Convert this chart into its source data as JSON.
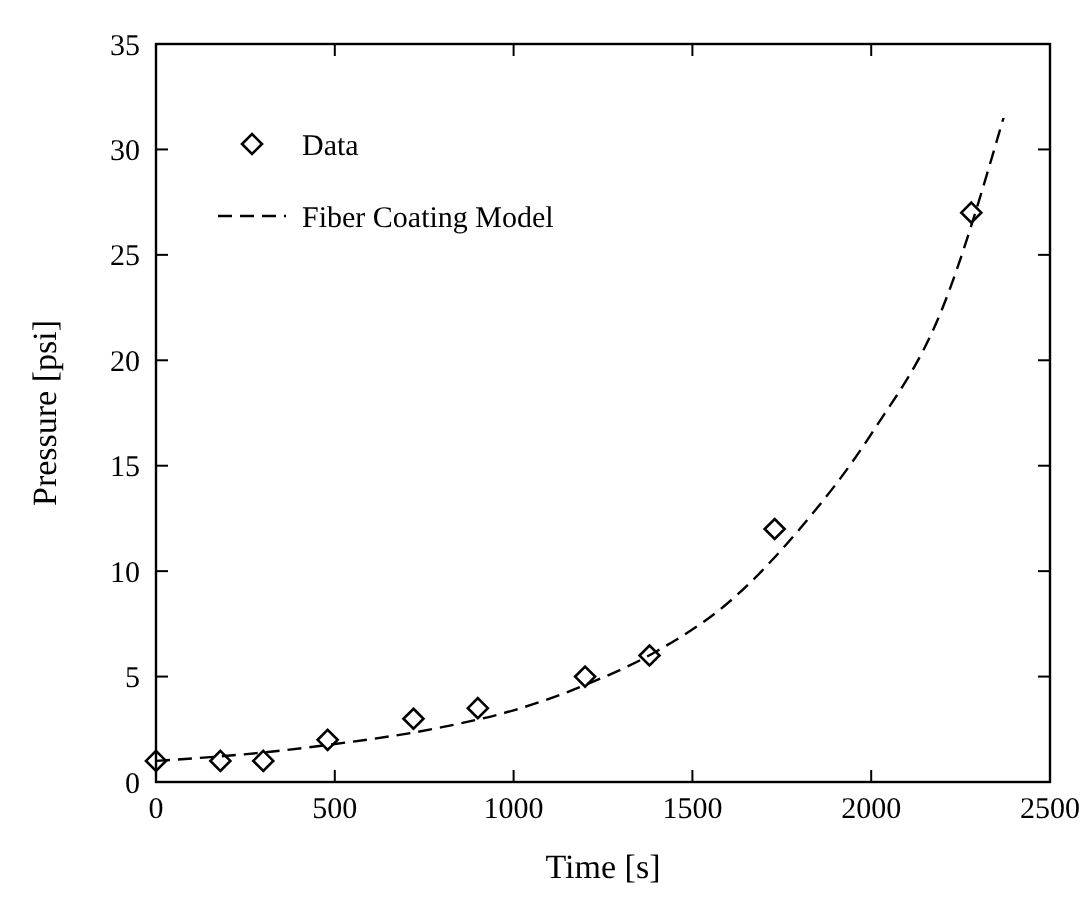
{
  "chart_data": {
    "type": "scatter",
    "xlabel": "Time [s]",
    "ylabel": "Pressure [psi]",
    "xlim": [
      0,
      2500
    ],
    "xticks": [
      0,
      500,
      1000,
      1500,
      2000,
      2500
    ],
    "ylim": [
      0,
      35
    ],
    "yticks": [
      0,
      5,
      10,
      15,
      20,
      25,
      30,
      35
    ],
    "legend": "top left",
    "grid": false,
    "series": [
      {
        "name": "Data",
        "marker": "diamond",
        "color": "#000000",
        "x": [
          0,
          180,
          300,
          480,
          720,
          900,
          1200,
          1380,
          1730,
          2280
        ],
        "values": [
          1,
          1,
          1,
          2,
          3,
          3.5,
          5,
          6,
          12,
          27
        ]
      },
      {
        "name": "Fiber Coating Model",
        "type": "line",
        "line_style": "dashed",
        "marker": "none",
        "color": "#000000",
        "x": [
          0,
          300,
          500,
          800,
          1000,
          1200,
          1400,
          1600,
          1800,
          2000,
          2200,
          2370
        ],
        "values": [
          1,
          1.4,
          1.8,
          2.6,
          3.4,
          4.6,
          6.2,
          8.5,
          12,
          16.5,
          22.5,
          31.5
        ]
      }
    ]
  }
}
